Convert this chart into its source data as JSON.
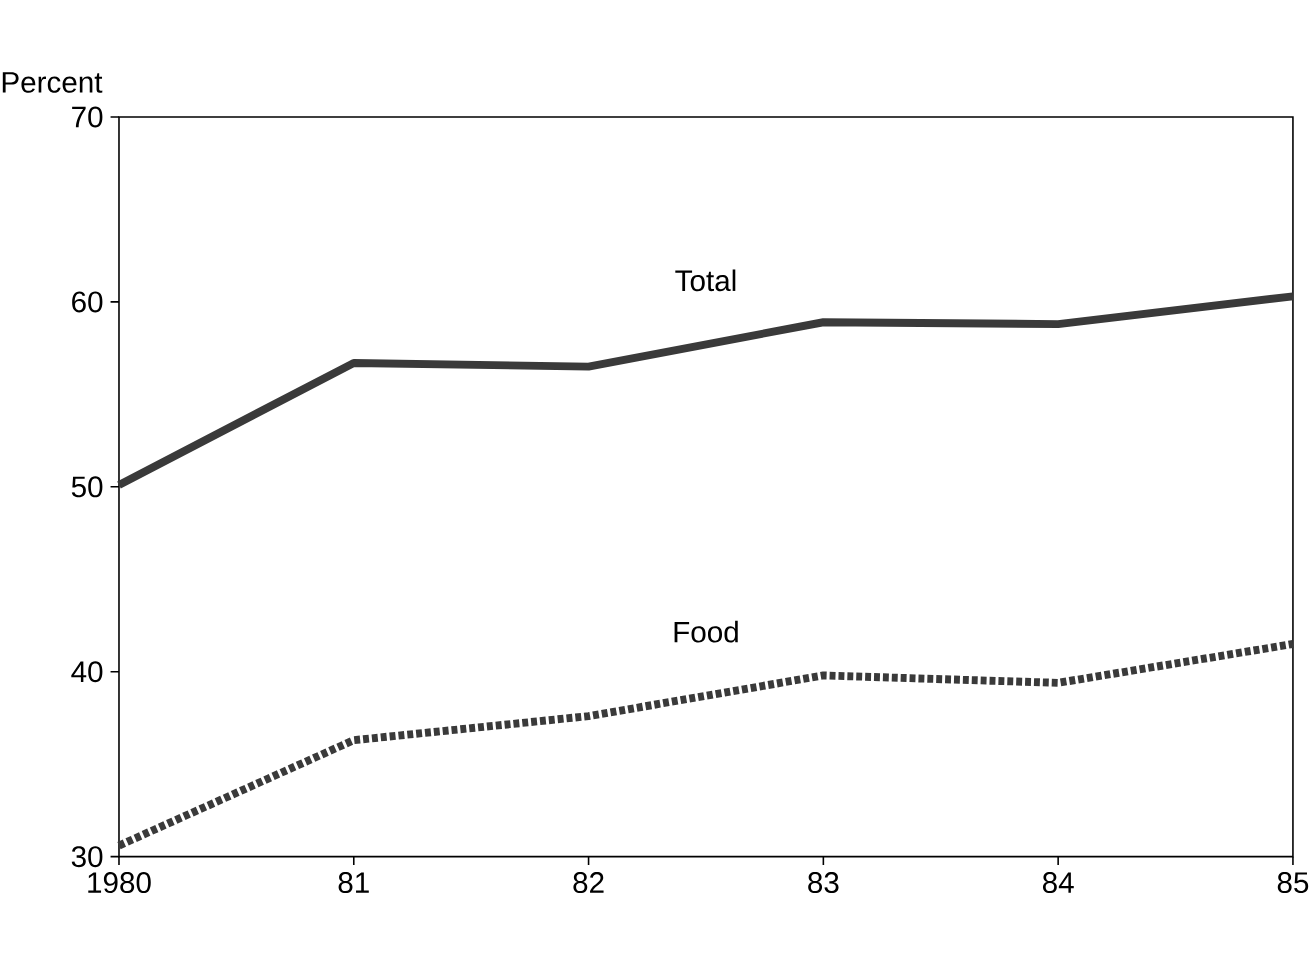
{
  "chart_data": {
    "type": "line",
    "ylabel": "Percent",
    "x": [
      1980,
      1981,
      1982,
      1983,
      1984,
      1985
    ],
    "xlim": [
      1980,
      1985
    ],
    "ylim": [
      30,
      70
    ],
    "yticks": [
      30,
      40,
      50,
      60,
      70
    ],
    "xticks": [
      {
        "value": 1980,
        "label": "1980"
      },
      {
        "value": 1981,
        "label": "81"
      },
      {
        "value": 1982,
        "label": "82"
      },
      {
        "value": 1983,
        "label": "83"
      },
      {
        "value": 1984,
        "label": "84"
      },
      {
        "value": 1985,
        "label": "85"
      }
    ],
    "grid": false,
    "legend": false,
    "series": [
      {
        "name": "Total",
        "color": "#3a3a3a",
        "line_style": "solid",
        "values": [
          50.1,
          56.7,
          56.5,
          58.9,
          58.8,
          60.3
        ]
      },
      {
        "name": "Food",
        "color": "#3a3a3a",
        "line_style": "dotted",
        "values": [
          30.6,
          36.3,
          37.6,
          39.8,
          39.4,
          41.5
        ]
      }
    ]
  }
}
